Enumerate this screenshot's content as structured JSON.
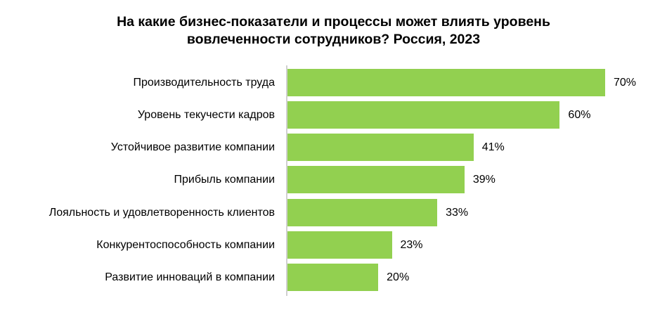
{
  "chart_data": {
    "type": "bar",
    "orientation": "horizontal",
    "title": "На какие бизнес-показатели и процессы может влиять уровень вовлеченности сотрудников? Россия, 2023",
    "title_lines": [
      "На какие бизнес-показатели и процессы может влиять уровень",
      "вовлеченности сотрудников? Россия, 2023"
    ],
    "xlabel": "",
    "ylabel": "",
    "categories": [
      "Производительность труда",
      "Уровень текучести кадров",
      "Устойчивое развитие компании",
      "Прибыль компании",
      "Лояльность и удовлетворенность клиентов",
      "Конкурентоспособность компании",
      "Развитие инноваций в компании"
    ],
    "values": [
      70,
      60,
      41,
      39,
      33,
      23,
      20
    ],
    "value_labels": [
      "70%",
      "60%",
      "41%",
      "39%",
      "33%",
      "23%",
      "20%"
    ],
    "unit": "%",
    "xlim": [
      0,
      75
    ],
    "grid": false,
    "legend": null,
    "bar_color": "#92D050"
  }
}
